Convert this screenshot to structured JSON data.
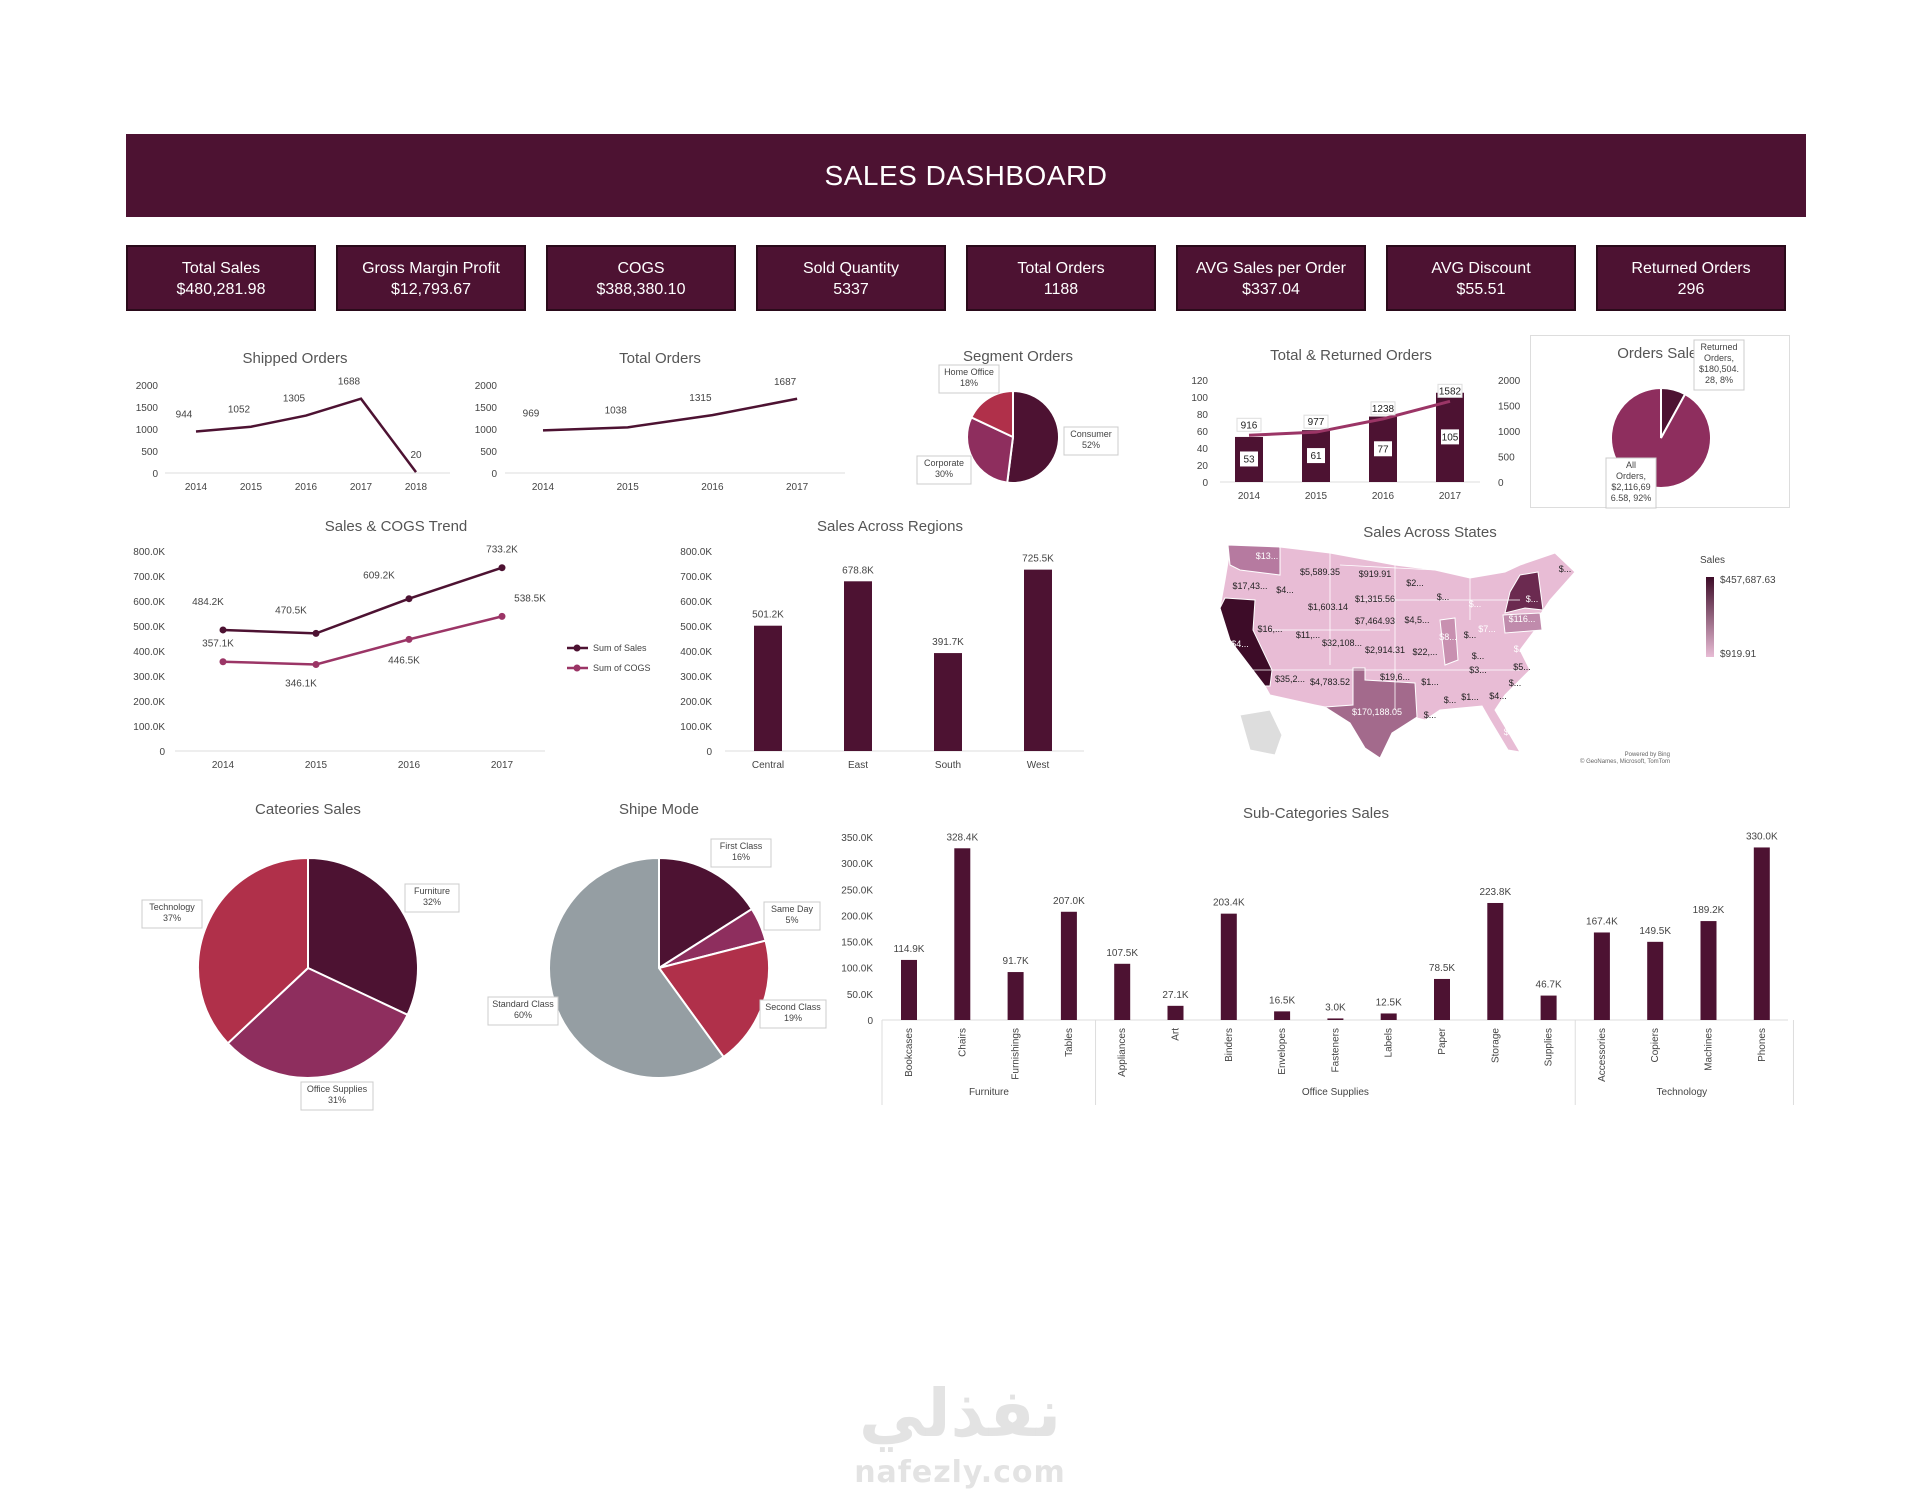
{
  "header": {
    "title": "SALES DASHBOARD"
  },
  "colors": {
    "primary": "#4d1232",
    "secondary": "#9b3566",
    "accent_red": "#b0304a",
    "mid_purple": "#8e2e5e",
    "gray": "#959ea3",
    "map_light": "#e8bcd5",
    "map_dark": "#3d0c28"
  },
  "kpis": [
    {
      "label": "Total Sales",
      "value": "$480,281.98"
    },
    {
      "label": "Gross Margin Profit",
      "value": "$12,793.67"
    },
    {
      "label": "COGS",
      "value": "$388,380.10"
    },
    {
      "label": "Sold Quantity",
      "value": "5337"
    },
    {
      "label": "Total Orders",
      "value": "1188"
    },
    {
      "label": "AVG Sales per Order",
      "value": "$337.04"
    },
    {
      "label": "AVG Discount",
      "value": "$55.51"
    },
    {
      "label": "Returned  Orders",
      "value": "296"
    }
  ],
  "map": {
    "title": "Sales Across States",
    "legend_title": "Sales",
    "legend_max": "$457,687.63",
    "legend_min": "$919.91",
    "credit1": "Powered by Bing",
    "credit2": "© GeoNames, Microsoft, TomTom",
    "labels": [
      "$13...",
      "$5,589.35",
      "$919.91",
      "$2...",
      "$...",
      "$17,43...",
      "$4...",
      "$1,315.56",
      "$1,603.14",
      "$...",
      "$...",
      "$...",
      "$7,464.93",
      "$4,5...",
      "$116...",
      "$16,...",
      "$11,...",
      "$32,108...",
      "$8...",
      "$...",
      "$7...",
      "$4...",
      "$2,914.31",
      "$22,...",
      "$...",
      "$...",
      "$3...",
      "$5...",
      "$35,2...",
      "$4,783.52",
      "$19,6...",
      "$1...",
      "$...",
      "$...",
      "$1...",
      "$4...",
      "$170,188.05",
      "$...",
      "$..."
    ]
  },
  "watermark": {
    "arabic": "نفذلي",
    "latin": "nafezly.com"
  },
  "chart_data": [
    {
      "id": "shipped",
      "type": "line",
      "title": "Shipped Orders",
      "categories": [
        "2014",
        "2015",
        "2016",
        "2017",
        "2018"
      ],
      "values": [
        944,
        1052,
        1305,
        1688,
        20
      ],
      "ylim": [
        0,
        2000
      ],
      "yticks": [
        "0",
        "500",
        "1000",
        "1500",
        "2000"
      ],
      "grid": false
    },
    {
      "id": "totalorders",
      "type": "line",
      "title": "Total Orders",
      "categories": [
        "2014",
        "2015",
        "2016",
        "2017"
      ],
      "values": [
        969,
        1038,
        1315,
        1687
      ],
      "ylim": [
        0,
        2000
      ],
      "yticks": [
        "0",
        "500",
        "1000",
        "1500",
        "2000"
      ],
      "grid": false
    },
    {
      "id": "segment",
      "type": "pie",
      "title": "Segment Orders",
      "slices": [
        {
          "label": "Consumer",
          "value": 52,
          "text": "52%"
        },
        {
          "label": "Corporate",
          "value": 30,
          "text": "30%"
        },
        {
          "label": "Home Office",
          "value": 18,
          "text": "18%"
        }
      ]
    },
    {
      "id": "totalreturned",
      "type": "bar+line",
      "title": "Total & Returned Orders",
      "categories": [
        "2014",
        "2015",
        "2016",
        "2017"
      ],
      "bars": [
        53,
        61,
        77,
        105
      ],
      "line": [
        916,
        977,
        1238,
        1582
      ],
      "ylim_left": [
        0,
        120
      ],
      "ylim_right": [
        0,
        2000
      ],
      "yticks_left": [
        "0",
        "20",
        "40",
        "60",
        "80",
        "100",
        "120"
      ],
      "yticks_right": [
        "0",
        "500",
        "1000",
        "1500",
        "2000"
      ]
    },
    {
      "id": "orderssales",
      "type": "pie",
      "title": "Orders Sales",
      "slices": [
        {
          "label": "Returned Orders",
          "value": 8,
          "lines": [
            "Returned",
            "Orders,",
            "$180,504.",
            "28, 8%"
          ]
        },
        {
          "label": "All Orders",
          "value": 92,
          "lines": [
            "All",
            "Orders,",
            "$2,116,69",
            "6.58, 92%"
          ]
        }
      ]
    },
    {
      "id": "salescogs",
      "type": "line",
      "title": "Sales & COGS Trend",
      "categories": [
        "2014",
        "2015",
        "2016",
        "2017"
      ],
      "series": [
        {
          "name": "Sum of Sales",
          "values": [
            484.2,
            470.5,
            609.2,
            733.2
          ],
          "labels": [
            "484.2K",
            "470.5K",
            "609.2K",
            "733.2K"
          ]
        },
        {
          "name": "Sum of COGS",
          "values": [
            357.1,
            346.1,
            446.5,
            538.5
          ],
          "labels": [
            "357.1K",
            "346.1K",
            "446.5K",
            "538.5K"
          ]
        }
      ],
      "ylim": [
        0,
        800
      ],
      "yticks": [
        "0",
        "100.0K",
        "200.0K",
        "300.0K",
        "400.0K",
        "500.0K",
        "600.0K",
        "700.0K",
        "800.0K"
      ],
      "legend": "right"
    },
    {
      "id": "regions",
      "type": "bar",
      "title": "Sales Across Regions",
      "categories": [
        "Central",
        "East",
        "South",
        "West"
      ],
      "values": [
        501.2,
        678.8,
        391.7,
        725.5
      ],
      "labels": [
        "501.2K",
        "678.8K",
        "391.7K",
        "725.5K"
      ],
      "ylim": [
        0,
        800
      ],
      "yticks": [
        "0",
        "100.0K",
        "200.0K",
        "300.0K",
        "400.0K",
        "500.0K",
        "600.0K",
        "700.0K",
        "800.0K"
      ]
    },
    {
      "id": "categories",
      "type": "pie",
      "title": "Cateories Sales",
      "slices": [
        {
          "label": "Furniture",
          "value": 32,
          "text": "32%"
        },
        {
          "label": "Office Supplies",
          "value": 31,
          "text": "31%"
        },
        {
          "label": "Technology",
          "value": 37,
          "text": "37%"
        }
      ]
    },
    {
      "id": "shipmode",
      "type": "pie",
      "title": "Shipe Mode",
      "slices": [
        {
          "label": "First Class",
          "value": 16,
          "text": "16%"
        },
        {
          "label": "Same Day",
          "value": 5,
          "text": "5%"
        },
        {
          "label": "Second Class",
          "value": 19,
          "text": "19%"
        },
        {
          "label": "Standard Class",
          "value": 60,
          "text": "60%"
        }
      ]
    },
    {
      "id": "subcats",
      "type": "bar",
      "title": "Sub-Categories Sales",
      "categories": [
        "Bookcases",
        "Chairs",
        "Furnishings",
        "Tables",
        "Appliances",
        "Art",
        "Binders",
        "Envelopes",
        "Fasteners",
        "Labels",
        "Paper",
        "Storage",
        "Supplies",
        "Accessories",
        "Copiers",
        "Machines",
        "Phones"
      ],
      "values": [
        114.9,
        328.4,
        91.7,
        207.0,
        107.5,
        27.1,
        203.4,
        16.5,
        3.0,
        12.5,
        78.5,
        223.8,
        46.7,
        167.4,
        149.5,
        189.2,
        330.0
      ],
      "labels": [
        "114.9K",
        "328.4K",
        "91.7K",
        "207.0K",
        "107.5K",
        "27.1K",
        "203.4K",
        "16.5K",
        "3.0K",
        "12.5K",
        "78.5K",
        "223.8K",
        "46.7K",
        "167.4K",
        "149.5K",
        "189.2K",
        "330.0K"
      ],
      "groups": [
        {
          "name": "Furniture",
          "count": 4
        },
        {
          "name": "Office Supplies",
          "count": 9
        },
        {
          "name": "Technology",
          "count": 4
        }
      ],
      "ylim": [
        0,
        350
      ],
      "yticks": [
        "0",
        "50.0K",
        "100.0K",
        "150.0K",
        "200.0K",
        "250.0K",
        "300.0K",
        "350.0K"
      ]
    }
  ]
}
